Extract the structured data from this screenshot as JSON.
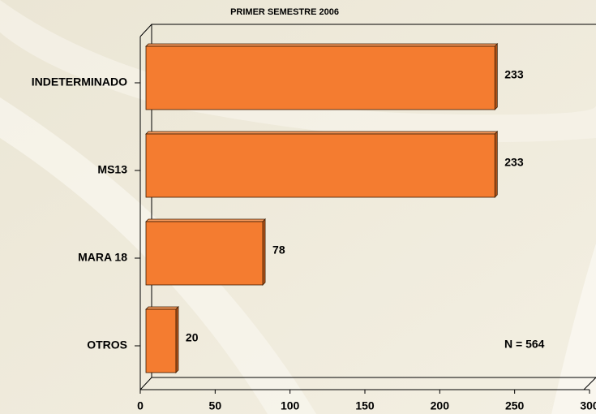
{
  "chart_data": {
    "type": "bar",
    "orientation": "horizontal",
    "title": "PRIMER SEMESTRE 2006",
    "categories": [
      "INDETERMINADO",
      "MS13",
      "MARA 18",
      "OTROS"
    ],
    "values": [
      233,
      233,
      78,
      20
    ],
    "color": "#f47c30",
    "xlim": [
      0,
      300
    ],
    "xticks": [
      0,
      50,
      100,
      150,
      200,
      250,
      300
    ],
    "annotation": "N = 564"
  }
}
